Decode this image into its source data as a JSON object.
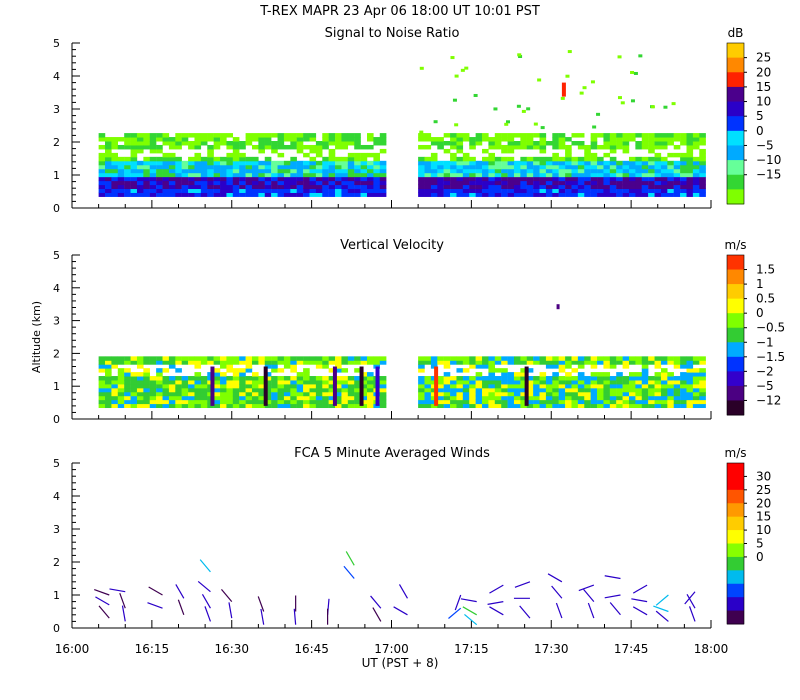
{
  "title": "T-REX  MAPR 23 Apr 06  18:00 UT  10:01  PST",
  "shared_x": {
    "label": "UT  (PST + 8)",
    "range_minutes": [
      0,
      120
    ],
    "tick_labels": [
      "16:00",
      "16:15",
      "16:30",
      "16:45",
      "17:00",
      "17:15",
      "17:30",
      "17:45",
      "18:00"
    ]
  },
  "colors": {
    "snr": [
      "#7fff00",
      "#33d633",
      "#66ff99",
      "#00aaff",
      "#00e0ff",
      "#0033ff",
      "#2a00c8",
      "#4b008c",
      "#ff2200",
      "#ff8800",
      "#ffcc00"
    ],
    "vv": [
      "#2a0028",
      "#4b0082",
      "#3300cc",
      "#0033ff",
      "#00aaff",
      "#33cc33",
      "#7fff00",
      "#ffff00",
      "#ffcc00",
      "#ff8800",
      "#ff3300",
      "#ff0000"
    ],
    "wind": [
      "#3f0050",
      "#2a00c8",
      "#0044ff",
      "#00bbee",
      "#33cc33",
      "#88ff00",
      "#ffff00",
      "#ffcc00",
      "#ff9900",
      "#ff5500",
      "#ff0000"
    ]
  },
  "chart_data": [
    {
      "type": "heatmap",
      "title": "Signal to Noise Ratio",
      "ylabel": "",
      "ylim": [
        0,
        5
      ],
      "y_ticks": [
        "0",
        "1",
        "2",
        "3",
        "4",
        "5"
      ],
      "colorbar": {
        "unit": "dB",
        "labels": [
          "25",
          "20",
          "15",
          "10",
          "5",
          "0",
          "−5",
          "−10",
          "−15"
        ]
      },
      "data_gap_ut": [
        "16:59",
        "17:05"
      ],
      "layers": [
        {
          "name": "strong",
          "bottom_km": 0.4,
          "top_km": 0.95,
          "level": "0 to 5 dB"
        },
        {
          "name": "mid",
          "bottom_km": 0.95,
          "top_km": 1.35,
          "level": "−5 to 0 dB"
        },
        {
          "name": "upper",
          "bottom_km": 1.35,
          "top_km": 2.2,
          "level": "−15 to −10 dB"
        }
      ]
    },
    {
      "type": "heatmap",
      "title": "Vertical Velocity",
      "ylabel": "Altitude  (km)",
      "ylim": [
        0,
        5
      ],
      "y_ticks": [
        "0",
        "1",
        "2",
        "3",
        "4",
        "5"
      ],
      "colorbar": {
        "unit": "m/s",
        "labels": [
          "1.5",
          "1",
          "0.5",
          "0",
          "−0.5",
          "−1",
          "−1.5",
          "−2",
          "−5",
          "−12"
        ]
      },
      "data_gap_ut": [
        "16:59",
        "17:05"
      ],
      "layers": [
        {
          "name": "lower",
          "bottom_km": 0.35,
          "top_km": 1.3,
          "level": "mostly −0.5 to 0.5 m/s"
        },
        {
          "name": "top",
          "bottom_km": 1.3,
          "top_km": 1.8,
          "level": "−0.5 to 0 m/s"
        }
      ]
    },
    {
      "type": "scatter",
      "title": "FCA 5 Minute Averaged Winds",
      "ylabel": "",
      "ylim": [
        0,
        5
      ],
      "y_ticks": [
        "0",
        "1",
        "2",
        "3",
        "4",
        "5"
      ],
      "colorbar": {
        "unit": "m/s",
        "labels": [
          "30",
          "25",
          "20",
          "15",
          "10",
          "5",
          "0"
        ]
      },
      "wind_barbs": [
        {
          "t": 7,
          "alt": 1.0,
          "dir": 290,
          "spd": 2
        },
        {
          "t": 7,
          "alt": 0.7,
          "dir": 300,
          "spd": 3
        },
        {
          "t": 7,
          "alt": 0.3,
          "dir": 320,
          "spd": 2
        },
        {
          "t": 10,
          "alt": 1.1,
          "dir": 280,
          "spd": 3
        },
        {
          "t": 10,
          "alt": 0.6,
          "dir": 340,
          "spd": 2
        },
        {
          "t": 10,
          "alt": 0.2,
          "dir": 350,
          "spd": 3
        },
        {
          "t": 17,
          "alt": 1.0,
          "dir": 300,
          "spd": 2
        },
        {
          "t": 17,
          "alt": 0.6,
          "dir": 290,
          "spd": 3
        },
        {
          "t": 21,
          "alt": 0.9,
          "dir": 330,
          "spd": 3
        },
        {
          "t": 21,
          "alt": 0.4,
          "dir": 340,
          "spd": 2
        },
        {
          "t": 26,
          "alt": 1.7,
          "dir": 320,
          "spd": 9
        },
        {
          "t": 26,
          "alt": 1.1,
          "dir": 310,
          "spd": 5
        },
        {
          "t": 26,
          "alt": 0.6,
          "dir": 330,
          "spd": 3
        },
        {
          "t": 26,
          "alt": 0.2,
          "dir": 340,
          "spd": 3
        },
        {
          "t": 30,
          "alt": 0.8,
          "dir": 320,
          "spd": 2
        },
        {
          "t": 30,
          "alt": 0.3,
          "dir": 350,
          "spd": 3
        },
        {
          "t": 36,
          "alt": 0.5,
          "dir": 340,
          "spd": 2
        },
        {
          "t": 36,
          "alt": 0.1,
          "dir": 350,
          "spd": 3
        },
        {
          "t": 42,
          "alt": 0.5,
          "dir": 0,
          "spd": 2
        },
        {
          "t": 42,
          "alt": 0.1,
          "dir": 355,
          "spd": 3
        },
        {
          "t": 48,
          "alt": 0.4,
          "dir": 5,
          "spd": 3
        },
        {
          "t": 48,
          "alt": 0.1,
          "dir": 0,
          "spd": 2
        },
        {
          "t": 53,
          "alt": 1.9,
          "dir": 330,
          "spd": 12
        },
        {
          "t": 53,
          "alt": 1.5,
          "dir": 320,
          "spd": 6
        },
        {
          "t": 58,
          "alt": 0.6,
          "dir": 320,
          "spd": 3
        },
        {
          "t": 58,
          "alt": 0.2,
          "dir": 330,
          "spd": 2
        },
        {
          "t": 63,
          "alt": 0.9,
          "dir": 330,
          "spd": 3
        },
        {
          "t": 63,
          "alt": 0.4,
          "dir": 300,
          "spd": 3
        },
        {
          "t": 73,
          "alt": 1.0,
          "dir": 200,
          "spd": 4
        },
        {
          "t": 73,
          "alt": 0.6,
          "dir": 230,
          "spd": 6
        },
        {
          "t": 76,
          "alt": 0.8,
          "dir": 280,
          "spd": 3
        },
        {
          "t": 76,
          "alt": 0.4,
          "dir": 300,
          "spd": 12
        },
        {
          "t": 76,
          "alt": 0.1,
          "dir": 310,
          "spd": 9
        },
        {
          "t": 81,
          "alt": 1.3,
          "dir": 240,
          "spd": 3
        },
        {
          "t": 81,
          "alt": 0.8,
          "dir": 260,
          "spd": 3
        },
        {
          "t": 81,
          "alt": 0.4,
          "dir": 300,
          "spd": 3
        },
        {
          "t": 86,
          "alt": 1.4,
          "dir": 250,
          "spd": 3
        },
        {
          "t": 86,
          "alt": 0.9,
          "dir": 270,
          "spd": 3
        },
        {
          "t": 86,
          "alt": 0.3,
          "dir": 320,
          "spd": 3
        },
        {
          "t": 92,
          "alt": 1.4,
          "dir": 300,
          "spd": 3
        },
        {
          "t": 92,
          "alt": 0.9,
          "dir": 320,
          "spd": 3
        },
        {
          "t": 92,
          "alt": 0.3,
          "dir": 340,
          "spd": 3
        },
        {
          "t": 98,
          "alt": 1.3,
          "dir": 250,
          "spd": 3
        },
        {
          "t": 98,
          "alt": 0.8,
          "dir": 320,
          "spd": 3
        },
        {
          "t": 98,
          "alt": 0.3,
          "dir": 340,
          "spd": 3
        },
        {
          "t": 103,
          "alt": 1.5,
          "dir": 280,
          "spd": 3
        },
        {
          "t": 103,
          "alt": 1.0,
          "dir": 260,
          "spd": 3
        },
        {
          "t": 103,
          "alt": 0.4,
          "dir": 320,
          "spd": 3
        },
        {
          "t": 108,
          "alt": 1.3,
          "dir": 240,
          "spd": 3
        },
        {
          "t": 108,
          "alt": 0.8,
          "dir": 280,
          "spd": 3
        },
        {
          "t": 108,
          "alt": 0.4,
          "dir": 300,
          "spd": 3
        },
        {
          "t": 112,
          "alt": 1.0,
          "dir": 230,
          "spd": 9
        },
        {
          "t": 112,
          "alt": 0.5,
          "dir": 290,
          "spd": 9
        },
        {
          "t": 112,
          "alt": 0.2,
          "dir": 310,
          "spd": 3
        },
        {
          "t": 117,
          "alt": 1.1,
          "dir": 220,
          "spd": 3
        },
        {
          "t": 117,
          "alt": 0.6,
          "dir": 330,
          "spd": 3
        },
        {
          "t": 117,
          "alt": 0.2,
          "dir": 340,
          "spd": 3
        }
      ]
    }
  ]
}
